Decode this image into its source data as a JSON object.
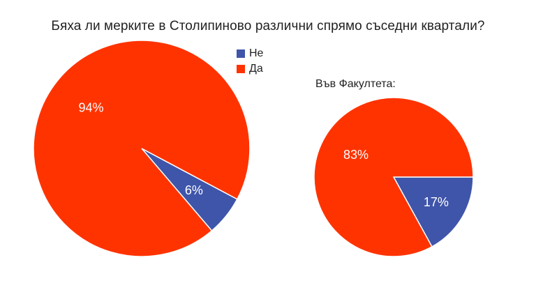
{
  "chart_data": [
    {
      "type": "pie",
      "title": "Бяха ли мерките в Столипиново различни спрямо съседни квартали?",
      "legend": {
        "position": "top-right",
        "entries": [
          "Не",
          "Да"
        ]
      },
      "slices": [
        {
          "label": "Не",
          "value": 6,
          "display": "6%",
          "color": "#3f55aa"
        },
        {
          "label": "Да",
          "value": 94,
          "display": "94%",
          "color": "#ff3300"
        }
      ]
    },
    {
      "type": "pie",
      "title": "Във Факултета:",
      "slices": [
        {
          "label": "Не",
          "value": 17,
          "display": "17%",
          "color": "#3f55aa"
        },
        {
          "label": "Да",
          "value": 83,
          "display": "83%",
          "color": "#ff3300"
        }
      ]
    }
  ]
}
